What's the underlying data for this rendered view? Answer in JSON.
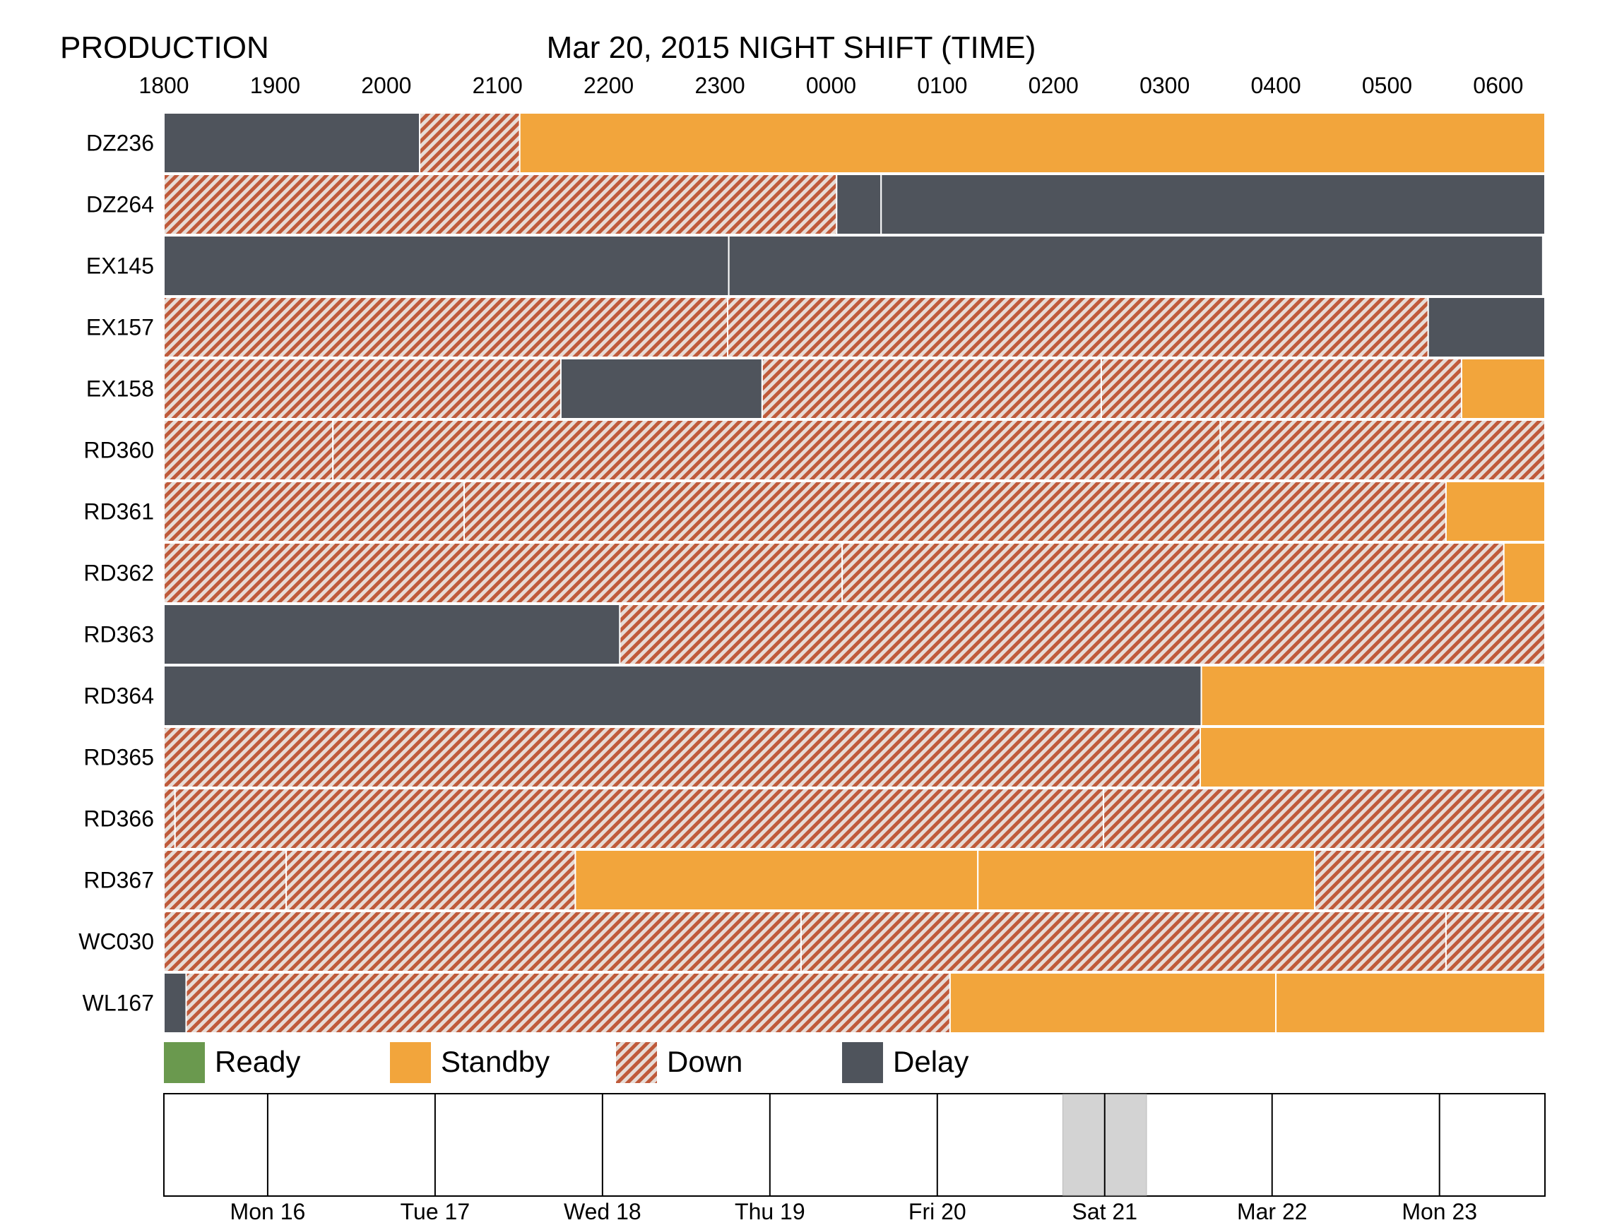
{
  "header": {
    "left_title": "PRODUCTION",
    "center_title": "Mar 20, 2015 NIGHT SHIFT (TIME)"
  },
  "colors": {
    "Ready": "#6a994e",
    "Standby": "#f2a53c",
    "Down": "#bf5a3a",
    "Delay": "#4f545c",
    "hatch_light": "#e7dcd6",
    "selected_day": "#d3d3d3"
  },
  "legend": [
    {
      "label": "Ready",
      "status": "Ready"
    },
    {
      "label": "Standby",
      "status": "Standby"
    },
    {
      "label": "Down",
      "status": "Down"
    },
    {
      "label": "Delay",
      "status": "Delay"
    }
  ],
  "chart_data": {
    "type": "timeline",
    "x_unit": "hours since 1800",
    "x_range": [
      0,
      12.42
    ],
    "tick_labels": [
      "1800",
      "1900",
      "2000",
      "2100",
      "2200",
      "2300",
      "0000",
      "0100",
      "0200",
      "0300",
      "0400",
      "0500",
      "0600"
    ],
    "grid": false,
    "legend_position": "bottom",
    "rows": [
      {
        "label": "DZ236",
        "segments": [
          {
            "start": 0,
            "end": 2.3,
            "status": "Delay"
          },
          {
            "start": 2.3,
            "end": 3.2,
            "status": "Down"
          },
          {
            "start": 3.2,
            "end": 12.42,
            "status": "Standby"
          }
        ]
      },
      {
        "label": "DZ264",
        "segments": [
          {
            "start": 0,
            "end": 6.05,
            "status": "Down"
          },
          {
            "start": 6.05,
            "end": 6.45,
            "status": "Delay"
          },
          {
            "start": 6.45,
            "end": 12.42,
            "status": "Delay"
          }
        ]
      },
      {
        "label": "EX145",
        "segments": [
          {
            "start": 0,
            "end": 5.08,
            "status": "Delay"
          },
          {
            "start": 5.08,
            "end": 12.4,
            "status": "Delay"
          }
        ]
      },
      {
        "label": "EX157",
        "segments": [
          {
            "start": 0,
            "end": 5.07,
            "status": "Down"
          },
          {
            "start": 5.07,
            "end": 11.37,
            "status": "Down"
          },
          {
            "start": 11.37,
            "end": 12.42,
            "status": "Delay"
          }
        ]
      },
      {
        "label": "EX158",
        "segments": [
          {
            "start": 0,
            "end": 3.57,
            "status": "Down"
          },
          {
            "start": 3.57,
            "end": 5.38,
            "status": "Delay"
          },
          {
            "start": 5.38,
            "end": 8.43,
            "status": "Down"
          },
          {
            "start": 8.43,
            "end": 11.67,
            "status": "Down"
          },
          {
            "start": 11.67,
            "end": 12.42,
            "status": "Standby"
          }
        ]
      },
      {
        "label": "RD360",
        "segments": [
          {
            "start": 0,
            "end": 1.52,
            "status": "Down"
          },
          {
            "start": 1.52,
            "end": 9.5,
            "status": "Down"
          },
          {
            "start": 9.5,
            "end": 12.42,
            "status": "Down"
          }
        ]
      },
      {
        "label": "RD361",
        "segments": [
          {
            "start": 0,
            "end": 2.7,
            "status": "Down"
          },
          {
            "start": 2.7,
            "end": 11.53,
            "status": "Down"
          },
          {
            "start": 11.53,
            "end": 12.42,
            "status": "Standby"
          }
        ]
      },
      {
        "label": "RD362",
        "segments": [
          {
            "start": 0,
            "end": 6.1,
            "status": "Down"
          },
          {
            "start": 6.1,
            "end": 12.05,
            "status": "Down"
          },
          {
            "start": 12.05,
            "end": 12.42,
            "status": "Standby"
          }
        ]
      },
      {
        "label": "RD363",
        "segments": [
          {
            "start": 0,
            "end": 4.1,
            "status": "Delay"
          },
          {
            "start": 4.1,
            "end": 12.42,
            "status": "Down"
          }
        ]
      },
      {
        "label": "RD364",
        "segments": [
          {
            "start": 0,
            "end": 9.33,
            "status": "Delay"
          },
          {
            "start": 9.33,
            "end": 12.42,
            "status": "Standby"
          }
        ]
      },
      {
        "label": "RD365",
        "segments": [
          {
            "start": 0,
            "end": 9.32,
            "status": "Down"
          },
          {
            "start": 9.32,
            "end": 12.42,
            "status": "Standby"
          }
        ]
      },
      {
        "label": "RD366",
        "segments": [
          {
            "start": 0,
            "end": 0.1,
            "status": "Down"
          },
          {
            "start": 0.1,
            "end": 8.45,
            "status": "Down"
          },
          {
            "start": 8.45,
            "end": 12.42,
            "status": "Down"
          }
        ]
      },
      {
        "label": "RD367",
        "segments": [
          {
            "start": 0,
            "end": 1.1,
            "status": "Down"
          },
          {
            "start": 1.1,
            "end": 3.7,
            "status": "Down"
          },
          {
            "start": 3.7,
            "end": 7.32,
            "status": "Standby"
          },
          {
            "start": 7.32,
            "end": 10.35,
            "status": "Standby"
          },
          {
            "start": 10.35,
            "end": 12.42,
            "status": "Down"
          }
        ]
      },
      {
        "label": "WC030",
        "segments": [
          {
            "start": 0,
            "end": 5.73,
            "status": "Down"
          },
          {
            "start": 5.73,
            "end": 11.53,
            "status": "Down"
          },
          {
            "start": 11.53,
            "end": 12.42,
            "status": "Down"
          }
        ]
      },
      {
        "label": "WL167",
        "segments": [
          {
            "start": 0,
            "end": 0.2,
            "status": "Delay"
          },
          {
            "start": 0.2,
            "end": 7.07,
            "status": "Down"
          },
          {
            "start": 7.07,
            "end": 10.0,
            "status": "Standby"
          },
          {
            "start": 10.0,
            "end": 12.42,
            "status": "Standby"
          }
        ]
      }
    ]
  },
  "day_selector": {
    "range_days": [
      0,
      8.25
    ],
    "labels": [
      {
        "text": "Mon 16",
        "day": 0.62
      },
      {
        "text": "Tue 17",
        "day": 1.62
      },
      {
        "text": "Wed 18",
        "day": 2.62
      },
      {
        "text": "Thu 19",
        "day": 3.62
      },
      {
        "text": "Fri 20",
        "day": 4.62
      },
      {
        "text": "Sat 21",
        "day": 5.62
      },
      {
        "text": "Mar 22",
        "day": 6.62
      },
      {
        "text": "Mon 23",
        "day": 7.62
      }
    ],
    "dividers": [
      0.62,
      1.62,
      2.62,
      3.62,
      4.62,
      5.62,
      6.62,
      7.62
    ],
    "selected": {
      "start": 5.37,
      "end": 5.87
    }
  }
}
